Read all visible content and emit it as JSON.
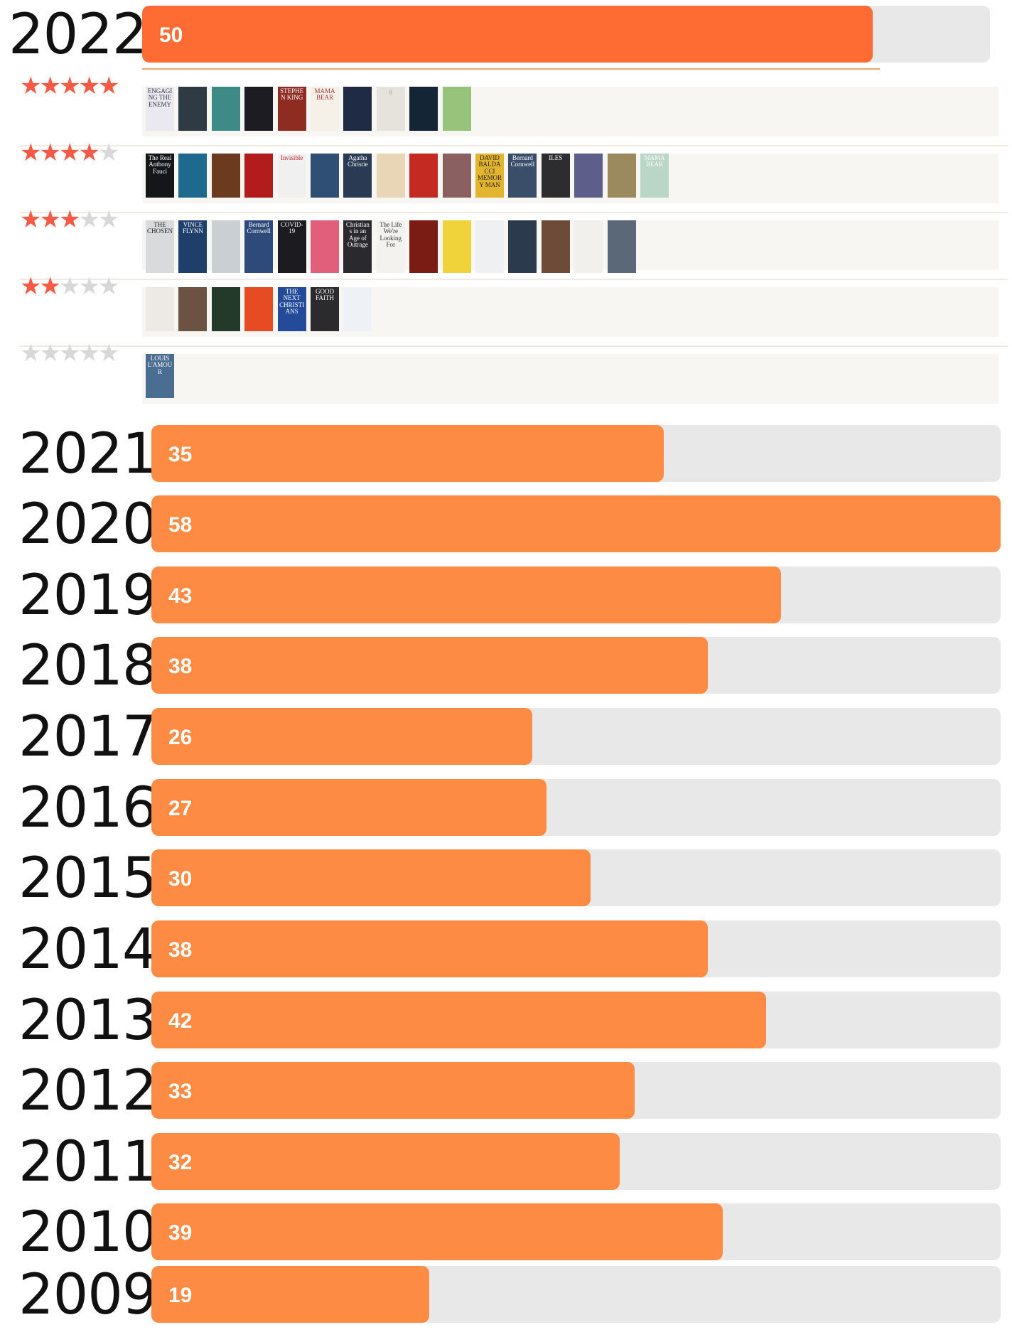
{
  "chart_data": {
    "type": "bar",
    "orientation": "horizontal",
    "categories": [
      "2022",
      "2021",
      "2020",
      "2019",
      "2018",
      "2017",
      "2016",
      "2015",
      "2014",
      "2013",
      "2012",
      "2011",
      "2010",
      "2009"
    ],
    "values": [
      50,
      35,
      58,
      43,
      38,
      26,
      27,
      30,
      38,
      42,
      33,
      32,
      39,
      19
    ],
    "xlim": [
      0,
      58
    ],
    "title": "",
    "xlabel": "",
    "ylabel": ""
  },
  "colors": {
    "bar_fill": "#fe8b43",
    "bar_fill_highlight": "#fe6b33",
    "track": "#e8e8e8",
    "star_on": "#f45a44",
    "star_off": "#d8d8d8"
  },
  "highlighted_year": "2022",
  "rating_shelves": [
    {
      "stars": 5,
      "covers": [
        {
          "title": "ENGAGING THE ENEMY",
          "bg": "#e9e9ef",
          "fg": "#334"
        },
        {
          "title": "",
          "bg": "#2e3a44",
          "fg": "#ccc"
        },
        {
          "title": "",
          "bg": "#3e8a86",
          "fg": "#fff"
        },
        {
          "title": "",
          "bg": "#1c1c22",
          "fg": "#ddd"
        },
        {
          "title": "STEPHEN KING",
          "bg": "#8e2c22",
          "fg": "#fff"
        },
        {
          "title": "MAMA BEAR",
          "bg": "#f5f0e8",
          "fg": "#a33"
        },
        {
          "title": "",
          "bg": "#1f2b45",
          "fg": "#c9a"
        },
        {
          "title": "g",
          "bg": "#e5e3dc",
          "fg": "#aaa"
        },
        {
          "title": "",
          "bg": "#142636",
          "fg": "#8ab"
        },
        {
          "title": "",
          "bg": "#97c47a",
          "fg": "#223"
        }
      ]
    },
    {
      "stars": 4,
      "covers": [
        {
          "title": "The Real Anthony Fauci",
          "bg": "#15161a",
          "fg": "#fff"
        },
        {
          "title": "",
          "bg": "#1d6a8e",
          "fg": "#fff"
        },
        {
          "title": "",
          "bg": "#6c3a1e",
          "fg": "#e9b"
        },
        {
          "title": "",
          "bg": "#b21c1c",
          "fg": "#fff"
        },
        {
          "title": "Invisible",
          "bg": "#f0f0f0",
          "fg": "#b22"
        },
        {
          "title": "",
          "bg": "#2f4f74",
          "fg": "#fff"
        },
        {
          "title": "Agatha Christie",
          "bg": "#2a3a52",
          "fg": "#fff"
        },
        {
          "title": "",
          "bg": "#e8d6b6",
          "fg": "#633"
        },
        {
          "title": "",
          "bg": "#c42a22",
          "fg": "#fff"
        },
        {
          "title": "",
          "bg": "#8a6060",
          "fg": "#fff"
        },
        {
          "title": "DAVID BALDACCI MEMORY MAN",
          "bg": "#e3b52f",
          "fg": "#222"
        },
        {
          "title": "Bernard Cornwell",
          "bg": "#3a4e6a",
          "fg": "#fff"
        },
        {
          "title": "ILES",
          "bg": "#2d2d30",
          "fg": "#fff"
        },
        {
          "title": "",
          "bg": "#5e5e8a",
          "fg": "#fff"
        },
        {
          "title": "",
          "bg": "#9a8a5e",
          "fg": "#fff"
        },
        {
          "title": "MAMA BEAR",
          "bg": "#b9d6c6",
          "fg": "#fff"
        }
      ]
    },
    {
      "stars": 3,
      "covers": [
        {
          "title": "THE CHOSEN",
          "bg": "#d9dadc",
          "fg": "#222"
        },
        {
          "title": "VINCE FLYNN",
          "bg": "#1d3f6a",
          "fg": "#fff"
        },
        {
          "title": "",
          "bg": "#c9cfd2",
          "fg": "#333"
        },
        {
          "title": "Bernard Cornwell",
          "bg": "#2e4a7a",
          "fg": "#fff"
        },
        {
          "title": "COVID-19",
          "bg": "#1b1b20",
          "fg": "#fff"
        },
        {
          "title": "",
          "bg": "#e25f7b",
          "fg": "#fff"
        },
        {
          "title": "Christians in an Age of Outrage",
          "bg": "#2a2a2e",
          "fg": "#fff"
        },
        {
          "title": "The Life We're Looking For",
          "bg": "#f4f2ee",
          "fg": "#333"
        },
        {
          "title": "",
          "bg": "#7a1c14",
          "fg": "#fff"
        },
        {
          "title": "",
          "bg": "#f0d23a",
          "fg": "#222"
        },
        {
          "title": "",
          "bg": "#eef0f2",
          "fg": "#2a6a9a"
        },
        {
          "title": "",
          "bg": "#2c3a4e",
          "fg": "#fff"
        },
        {
          "title": "",
          "bg": "#6e4a38",
          "fg": "#fff"
        },
        {
          "title": "",
          "bg": "#f1f0ec",
          "fg": "#222"
        },
        {
          "title": "",
          "bg": "#5b6878",
          "fg": "#fff"
        }
      ]
    },
    {
      "stars": 2,
      "covers": [
        {
          "title": "",
          "bg": "#ede9e4",
          "fg": "#a22"
        },
        {
          "title": "",
          "bg": "#6c5242",
          "fg": "#fff"
        },
        {
          "title": "",
          "bg": "#233a2a",
          "fg": "#9c9"
        },
        {
          "title": "",
          "bg": "#e74b24",
          "fg": "#fff"
        },
        {
          "title": "THE NEXT CHRISTIANS",
          "bg": "#244b9a",
          "fg": "#fff"
        },
        {
          "title": "GOOD FAITH",
          "bg": "#2b2b2d",
          "fg": "#fff"
        },
        {
          "title": "",
          "bg": "#eef2f6",
          "fg": "#2a5aa8"
        }
      ]
    },
    {
      "stars": 0,
      "covers": [
        {
          "title": "LOUIS L'AMOUR",
          "bg": "#4a6e92",
          "fg": "#fff"
        }
      ]
    }
  ]
}
